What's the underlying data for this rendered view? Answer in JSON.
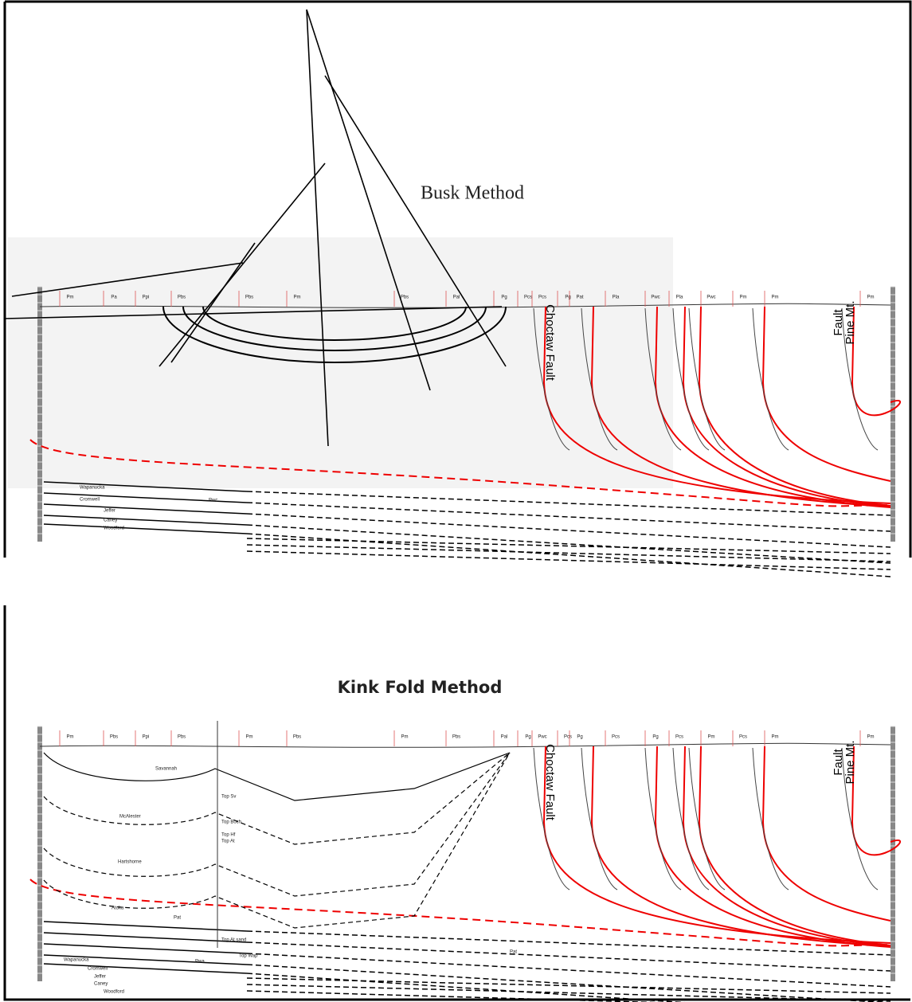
{
  "top_panel": {
    "title": "Busk Method",
    "formations": [
      "Pm",
      "Pa",
      "Ppi",
      "Pbs",
      "Pbs",
      "Pm",
      "Pbs",
      "Pal",
      "Pg",
      "Pcs",
      "Pcs",
      "Pg",
      "Pat",
      "Pla",
      "Pwc",
      "Pla",
      "Pwc",
      "Pm",
      "Pm",
      "Pm"
    ],
    "faults": {
      "choctaw": "Choctaw Fault",
      "pine": [
        "Pine Mt.",
        "Fault"
      ]
    },
    "units": [
      "Wapanucka",
      "Cromwell",
      "Jeffer",
      "Caney",
      "Woodford",
      "Pwc"
    ]
  },
  "bottom_panel": {
    "title": "Kink Fold Method",
    "formations": [
      "Pm",
      "Pbs",
      "Ppi",
      "Pbs",
      "Pm",
      "Pbs",
      "Pm",
      "Pbs",
      "Pal",
      "Pg",
      "Pwc",
      "Pcs",
      "Pg",
      "Pcs",
      "Pg",
      "Pcs",
      "Pm",
      "Pcs",
      "Pm",
      "Pm"
    ],
    "faults": {
      "choctaw": "Choctaw Fault",
      "pine": [
        "Pine Mt.",
        "Fault"
      ]
    },
    "units": [
      "Savannah",
      "McAlester",
      "Hartshorne",
      "Atoka",
      "Pat",
      "Pat",
      "Wapanucka",
      "Pwa",
      "Cromwell",
      "Jeffer",
      "Caney",
      "Woodford"
    ],
    "wells": [
      "Top Sv",
      "Top Boch",
      "Top Hf",
      "Top At",
      "Top At sand",
      "Top Wap"
    ]
  }
}
